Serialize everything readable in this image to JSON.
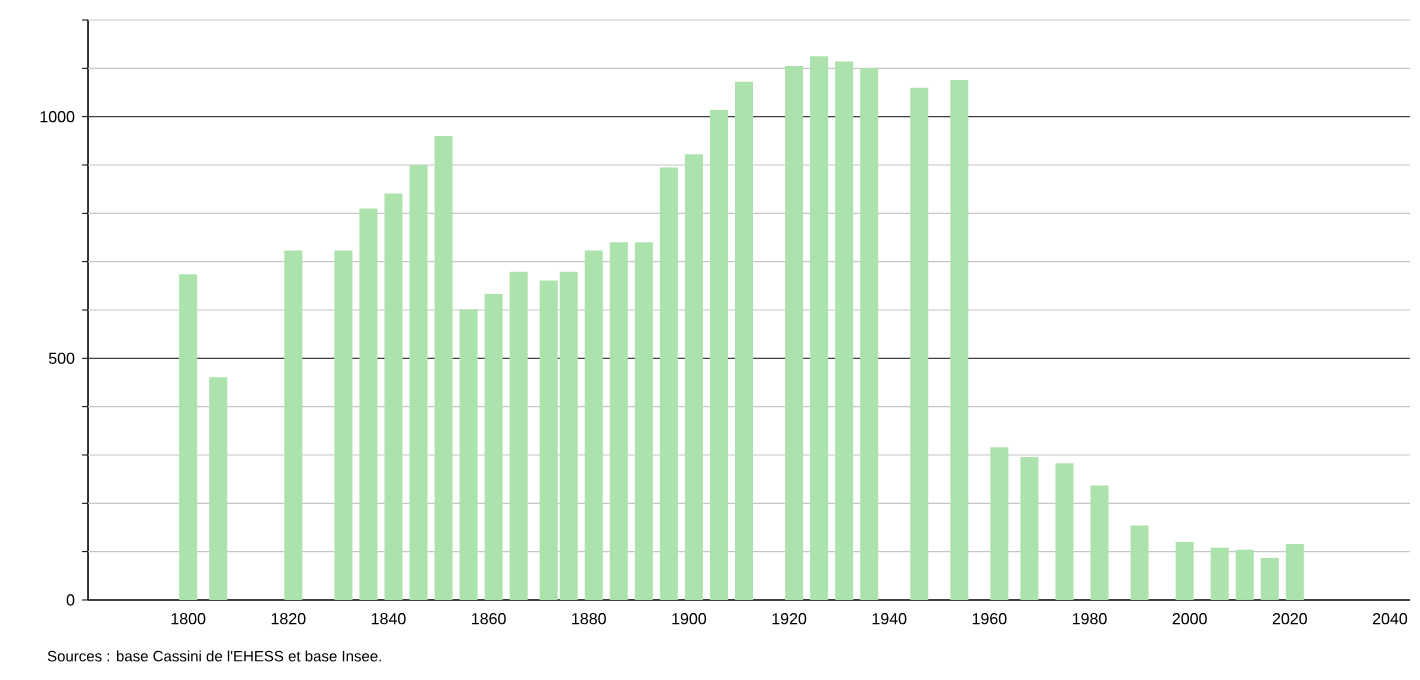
{
  "chart_data": {
    "type": "bar",
    "x": [
      1800,
      1806,
      1821,
      1831,
      1836,
      1841,
      1846,
      1851,
      1856,
      1861,
      1866,
      1872,
      1876,
      1881,
      1886,
      1891,
      1896,
      1901,
      1906,
      1911,
      1921,
      1926,
      1931,
      1936,
      1946,
      1954,
      1962,
      1968,
      1975,
      1982,
      1990,
      1999,
      2006,
      2011,
      2016,
      2021
    ],
    "values": [
      674,
      461,
      723,
      723,
      810,
      841,
      900,
      960,
      601,
      633,
      679,
      661,
      679,
      723,
      740,
      740,
      895,
      922,
      1014,
      1072,
      1105,
      1125,
      1114,
      1100,
      1060,
      1076,
      316,
      296,
      283,
      237,
      154,
      120,
      108,
      104,
      87,
      116
    ],
    "color": "#ace3ac",
    "xlim": [
      1780,
      2044
    ],
    "xticks": [
      1800,
      1820,
      1840,
      1860,
      1880,
      1900,
      1920,
      1940,
      1960,
      1980,
      2000,
      2020,
      2040
    ],
    "ylim": [
      0,
      1200
    ],
    "yticks": [
      0,
      {
        "value": 100,
        "label": null
      },
      {
        "value": 200,
        "label": null
      },
      {
        "value": 300,
        "label": null
      },
      {
        "value": 400,
        "label": null
      },
      500,
      {
        "value": 600,
        "label": null
      },
      {
        "value": 700,
        "label": null
      },
      {
        "value": 800,
        "label": null
      },
      {
        "value": 900,
        "label": null
      },
      1000,
      {
        "value": 1100,
        "label": null
      },
      {
        "value": 1200,
        "label": null
      }
    ],
    "grid": "y",
    "annotations": [
      "Sources : base Cassini de l'EHESS et base Insee."
    ]
  }
}
